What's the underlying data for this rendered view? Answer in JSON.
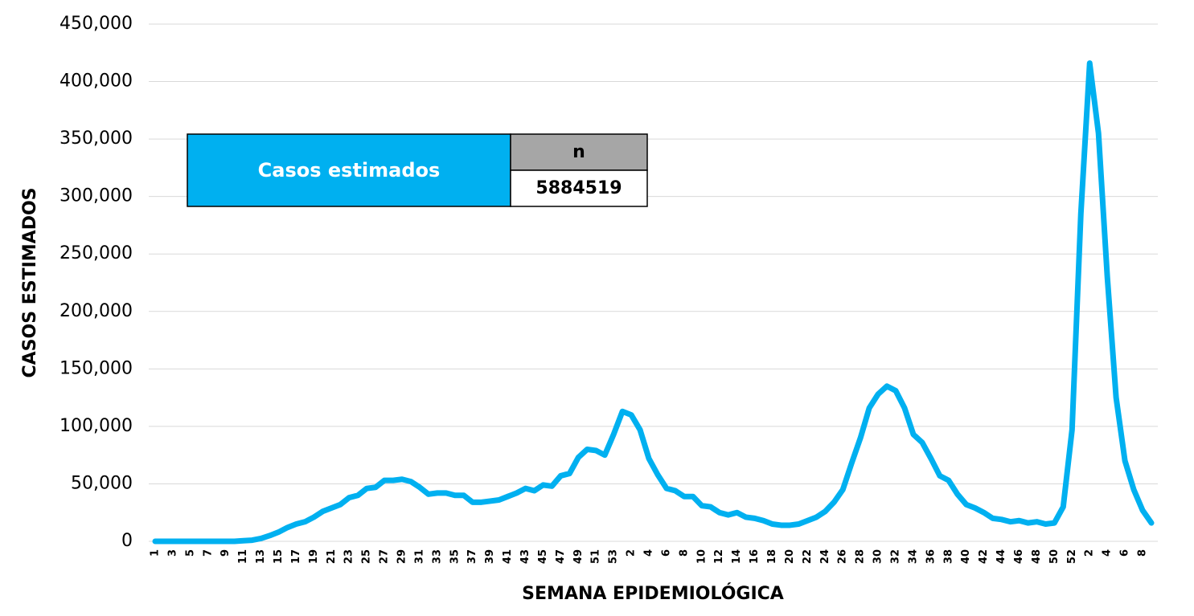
{
  "chart_data": {
    "type": "line",
    "x_label": "SEMANA EPIDEMIOLÓGICA",
    "y_label": "CASOS ESTIMADOS",
    "categories": [
      "1",
      null,
      "3",
      null,
      "5",
      null,
      "7",
      null,
      "9",
      null,
      "11",
      null,
      "13",
      null,
      "15",
      null,
      "17",
      null,
      "19",
      null,
      "21",
      null,
      "23",
      null,
      "25",
      null,
      "27",
      null,
      "29",
      null,
      "31",
      null,
      "33",
      null,
      "35",
      null,
      "37",
      null,
      "39",
      null,
      "41",
      null,
      "43",
      null,
      "45",
      null,
      "47",
      null,
      "49",
      null,
      "51",
      null,
      "53",
      null,
      "2",
      null,
      "4",
      null,
      "6",
      null,
      "8",
      null,
      "10",
      null,
      "12",
      null,
      "14",
      null,
      "16",
      null,
      "18",
      null,
      "20",
      null,
      "22",
      null,
      "24",
      null,
      "26",
      null,
      "28",
      null,
      "30",
      null,
      "32",
      null,
      "34",
      null,
      "36",
      null,
      "38",
      null,
      "40",
      null,
      "42",
      null,
      "44",
      null,
      "46",
      null,
      "48",
      null,
      "50",
      null,
      "52",
      null,
      "2",
      null,
      "4",
      null,
      "6",
      null,
      "8",
      null
    ],
    "values": [
      0,
      0,
      0,
      0,
      0,
      0,
      0,
      0,
      0,
      0,
      500,
      1000,
      2500,
      5000,
      8000,
      12000,
      15000,
      17000,
      21000,
      26000,
      29000,
      32000,
      38000,
      40000,
      46000,
      47000,
      53000,
      53000,
      54000,
      52000,
      47000,
      41000,
      42000,
      42000,
      40000,
      40000,
      34000,
      34000,
      35000,
      36000,
      39000,
      42000,
      46000,
      44000,
      49000,
      48000,
      57000,
      59000,
      73000,
      80000,
      79000,
      75000,
      93000,
      113000,
      110000,
      97000,
      72000,
      58000,
      46000,
      44000,
      39000,
      39000,
      31000,
      30000,
      25000,
      23000,
      25000,
      21000,
      20000,
      18000,
      15000,
      14000,
      14000,
      15000,
      18000,
      21000,
      26000,
      34000,
      45000,
      68000,
      90000,
      116000,
      128000,
      135000,
      131000,
      116000,
      93000,
      86000,
      72000,
      57000,
      53000,
      41000,
      32000,
      29000,
      25000,
      20000,
      19000,
      17000,
      18000,
      16000,
      17000,
      15000,
      16000,
      30000,
      97000,
      285000,
      416000,
      355000,
      230000,
      125000,
      70000,
      45000,
      27000,
      16000
    ],
    "color": "#00b0f0",
    "ylim": [
      0,
      450000
    ],
    "yticks": [
      0,
      {
        "value": 50000,
        "label": "50,000"
      },
      {
        "value": 100000,
        "label": "100,000"
      },
      {
        "value": 150000,
        "label": "150,000"
      },
      {
        "value": 200000,
        "label": "200,000"
      },
      {
        "value": 250000,
        "label": "250,000"
      },
      {
        "value": 300000,
        "label": "300,000"
      },
      {
        "value": 350000,
        "label": "350,000"
      },
      {
        "value": 400000,
        "label": "400,000"
      },
      {
        "value": 450000,
        "label": "450,000"
      }
    ],
    "grid": true,
    "summary": {
      "label": "Casos estimados",
      "header": "n",
      "value": "5884519"
    }
  }
}
